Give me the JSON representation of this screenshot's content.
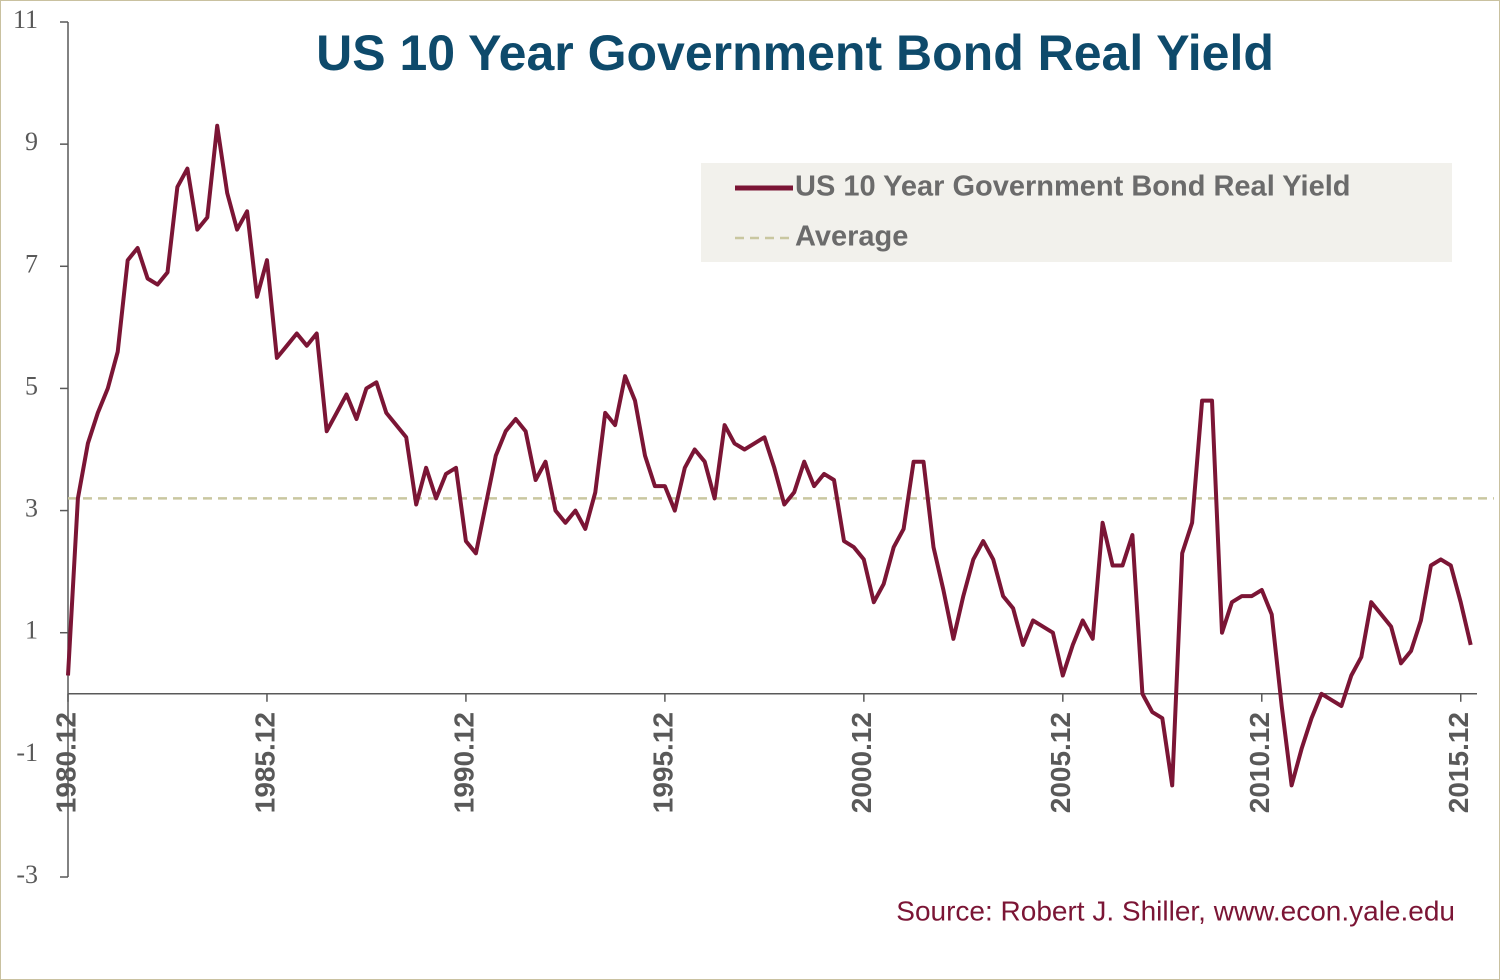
{
  "chart_data": {
    "type": "line",
    "title": "US 10 Year Government Bond Real Yield",
    "source": "Source: Robert J. Shiller, www.econ.yale.edu",
    "x": [
      "1980.12",
      "1981.03",
      "1981.06",
      "1981.09",
      "1981.12",
      "1982.03",
      "1982.06",
      "1982.09",
      "1982.12",
      "1983.03",
      "1983.06",
      "1983.09",
      "1983.12",
      "1984.03",
      "1984.06",
      "1984.09",
      "1984.12",
      "1985.03",
      "1985.06",
      "1985.09",
      "1985.12",
      "1986.03",
      "1986.06",
      "1986.09",
      "1986.12",
      "1987.03",
      "1987.06",
      "1987.09",
      "1987.12",
      "1988.03",
      "1988.06",
      "1988.09",
      "1988.12",
      "1989.03",
      "1989.06",
      "1989.09",
      "1989.12",
      "1990.03",
      "1990.06",
      "1990.09",
      "1990.12",
      "1991.03",
      "1991.06",
      "1991.09",
      "1991.12",
      "1992.03",
      "1992.06",
      "1992.09",
      "1992.12",
      "1993.03",
      "1993.06",
      "1993.09",
      "1993.12",
      "1994.03",
      "1994.06",
      "1994.09",
      "1994.12",
      "1995.03",
      "1995.06",
      "1995.09",
      "1995.12",
      "1996.03",
      "1996.06",
      "1996.09",
      "1996.12",
      "1997.03",
      "1997.06",
      "1997.09",
      "1997.12",
      "1998.03",
      "1998.06",
      "1998.09",
      "1998.12",
      "1999.03",
      "1999.06",
      "1999.09",
      "1999.12",
      "2000.03",
      "2000.06",
      "2000.09",
      "2000.12",
      "2001.03",
      "2001.06",
      "2001.09",
      "2001.12",
      "2002.03",
      "2002.06",
      "2002.09",
      "2002.12",
      "2003.03",
      "2003.06",
      "2003.09",
      "2003.12",
      "2004.03",
      "2004.06",
      "2004.09",
      "2004.12",
      "2005.03",
      "2005.06",
      "2005.09",
      "2005.12",
      "2006.03",
      "2006.06",
      "2006.09",
      "2006.12",
      "2007.03",
      "2007.06",
      "2007.09",
      "2007.12",
      "2008.03",
      "2008.06",
      "2008.09",
      "2008.12",
      "2009.03",
      "2009.06",
      "2009.09",
      "2009.12",
      "2010.03",
      "2010.06",
      "2010.09",
      "2010.12",
      "2011.03",
      "2011.06",
      "2011.09",
      "2011.12",
      "2012.03",
      "2012.06",
      "2012.09",
      "2012.12",
      "2013.03",
      "2013.06",
      "2013.09",
      "2013.12",
      "2014.03",
      "2014.06",
      "2014.09",
      "2014.12",
      "2015.03",
      "2015.06",
      "2015.09",
      "2015.12",
      "2016.03"
    ],
    "series": [
      {
        "name": "US 10 Year Government Bond Real Yield",
        "color": "#7b1535",
        "values": [
          0.3,
          3.2,
          4.1,
          4.6,
          5.0,
          5.6,
          7.1,
          7.3,
          6.8,
          6.7,
          6.9,
          8.3,
          8.6,
          7.6,
          7.8,
          9.3,
          8.2,
          7.6,
          7.9,
          6.5,
          7.1,
          5.5,
          5.7,
          5.9,
          5.7,
          5.9,
          4.3,
          4.6,
          4.9,
          4.5,
          5.0,
          5.1,
          4.6,
          4.4,
          4.2,
          3.1,
          3.7,
          3.2,
          3.6,
          3.7,
          2.5,
          2.3,
          3.1,
          3.9,
          4.3,
          4.5,
          4.3,
          3.5,
          3.8,
          3.0,
          2.8,
          3.0,
          2.7,
          3.3,
          4.6,
          4.4,
          5.2,
          4.8,
          3.9,
          3.4,
          3.4,
          3.0,
          3.7,
          4.0,
          3.8,
          3.2,
          4.4,
          4.1,
          4.0,
          4.1,
          4.2,
          3.7,
          3.1,
          3.3,
          3.8,
          3.4,
          3.6,
          3.5,
          2.5,
          2.4,
          2.2,
          1.5,
          1.8,
          2.4,
          2.7,
          3.8,
          3.8,
          2.4,
          1.7,
          0.9,
          1.6,
          2.2,
          2.5,
          2.2,
          1.6,
          1.4,
          0.8,
          1.2,
          1.1,
          1.0,
          0.3,
          0.8,
          1.2,
          0.9,
          2.8,
          2.1,
          2.1,
          2.6,
          0.0,
          -0.3,
          -0.4,
          -1.5,
          2.3,
          2.8,
          4.8,
          4.8,
          1.0,
          1.5,
          1.6,
          1.6,
          1.7,
          1.3,
          -0.2,
          -1.5,
          -0.9,
          -0.4,
          0.0,
          -0.1,
          -0.2,
          0.3,
          0.6,
          1.5,
          1.3,
          1.1,
          0.5,
          0.7,
          1.2,
          2.1,
          2.2,
          2.1,
          1.5,
          0.8
        ]
      }
    ],
    "average": {
      "name": "Average",
      "value": 3.2,
      "color": "#c9c7a0"
    },
    "xlim": [
      "1980.12",
      "2016.04"
    ],
    "xticks": [
      "1980.12",
      "1985.12",
      "1990.12",
      "1995.12",
      "2000.12",
      "2005.12",
      "2010.12",
      "2015.12"
    ],
    "ylim": [
      -3,
      11
    ],
    "yticks": [
      11,
      9,
      7,
      5,
      3,
      1,
      -1,
      -3
    ]
  }
}
